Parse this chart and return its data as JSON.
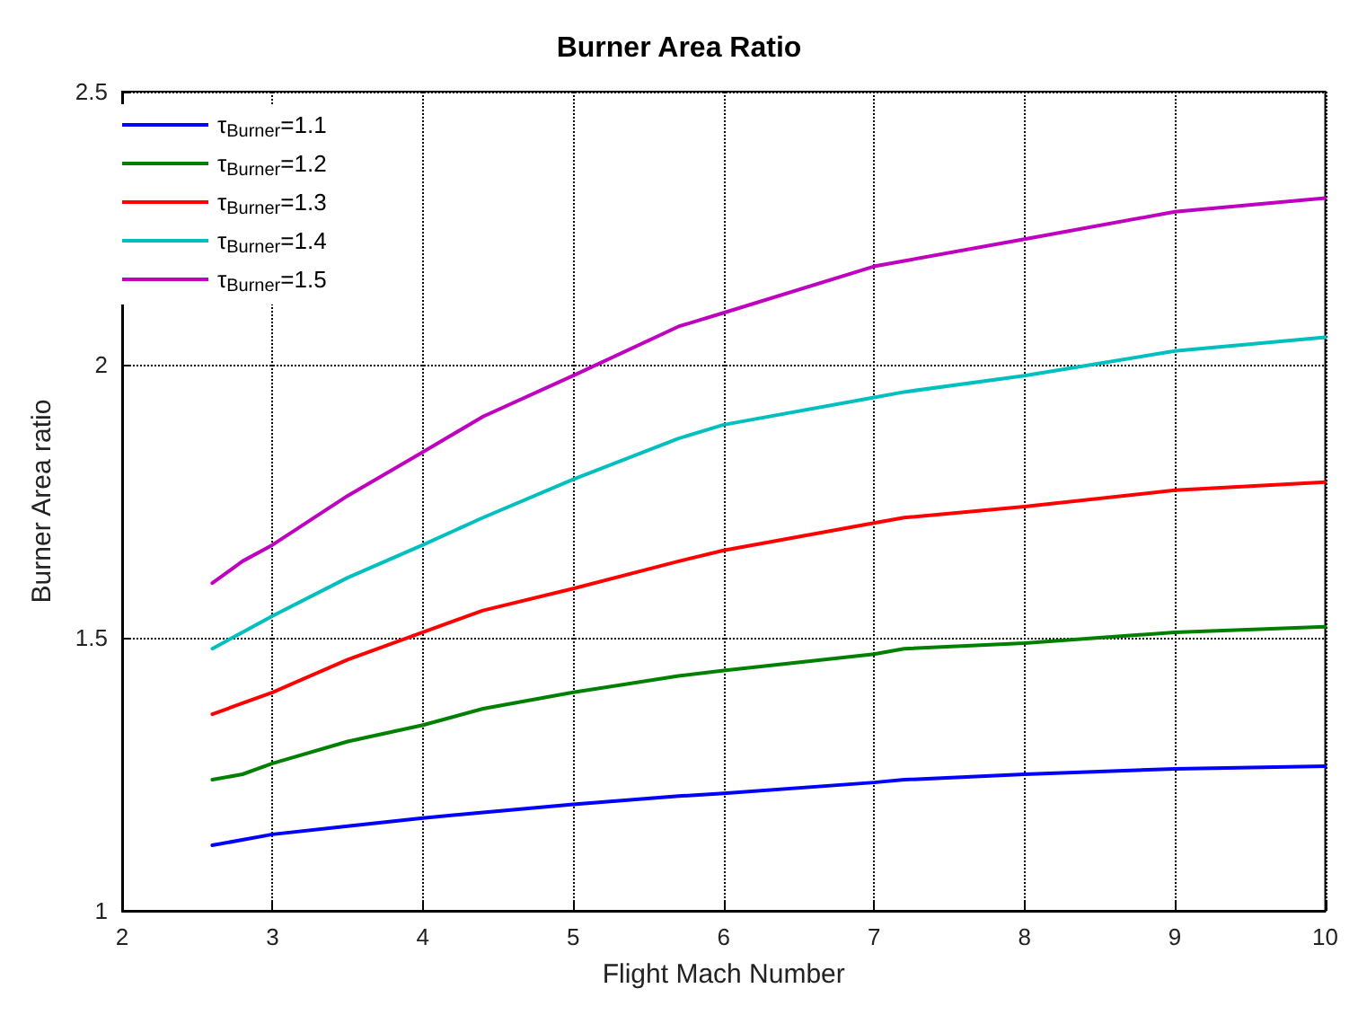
{
  "chart_data": {
    "type": "line",
    "title": "Burner Area Ratio",
    "xlabel": "Flight Mach Number",
    "ylabel": "Burner Area ratio",
    "xlim": [
      2,
      10
    ],
    "xticks": [
      2,
      3,
      4,
      5,
      6,
      7,
      8,
      9,
      10
    ],
    "ylim": [
      1,
      2.5
    ],
    "yticks": [
      1,
      1.5,
      2,
      2.5
    ],
    "grid": true,
    "legend": "top left",
    "line_style": "solid",
    "marker": "none",
    "x": [
      2.6,
      2.8,
      3,
      3.5,
      4,
      4.4,
      5,
      5.7,
      6,
      7,
      7.2,
      8,
      9,
      10
    ],
    "series": [
      {
        "name": "τ$_{Burner}$=1.1",
        "color": "#0000ff",
        "values": [
          1.12,
          1.13,
          1.14,
          1.155,
          1.17,
          1.18,
          1.195,
          1.21,
          1.215,
          1.235,
          1.24,
          1.25,
          1.26,
          1.265
        ]
      },
      {
        "name": "τ$_{Burner}$=1.2",
        "color": "#008000",
        "values": [
          1.24,
          1.25,
          1.27,
          1.31,
          1.34,
          1.37,
          1.4,
          1.43,
          1.44,
          1.47,
          1.48,
          1.49,
          1.51,
          1.52
        ]
      },
      {
        "name": "τ$_{Burner}$=1.3",
        "color": "#ff0000",
        "values": [
          1.36,
          1.38,
          1.4,
          1.46,
          1.51,
          1.55,
          1.59,
          1.64,
          1.66,
          1.71,
          1.72,
          1.74,
          1.77,
          1.785
        ]
      },
      {
        "name": "τ$_{Burner}$=1.4",
        "color": "#00bfbf",
        "values": [
          1.48,
          1.51,
          1.54,
          1.61,
          1.67,
          1.72,
          1.79,
          1.865,
          1.89,
          1.94,
          1.95,
          1.98,
          2.025,
          2.05
        ]
      },
      {
        "name": "τ$_{Burner}$=1.5",
        "color": "#bf00bf",
        "values": [
          1.6,
          1.64,
          1.67,
          1.76,
          1.84,
          1.905,
          1.98,
          2.07,
          2.095,
          2.18,
          2.19,
          2.23,
          2.28,
          2.305
        ]
      }
    ]
  }
}
